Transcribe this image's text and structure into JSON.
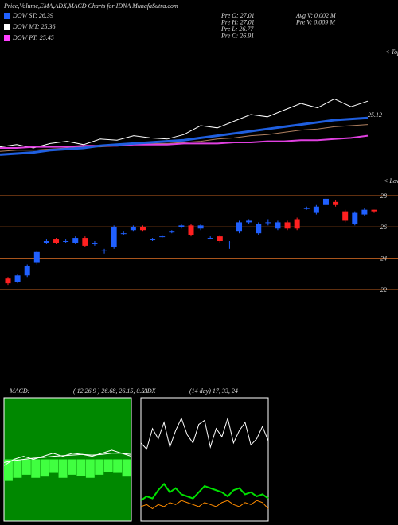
{
  "header": {
    "title": "Price,Volume,EMA,ADX,MACD Charts for IDNA MunafaSutra.com",
    "legend": [
      {
        "label": "DOW ST: 26.39",
        "color": "#2060ff"
      },
      {
        "label": "DOW MT: 25.36",
        "color": "#ffffff"
      },
      {
        "label": "DOW PT: 25.45",
        "color": "#ff40ff"
      }
    ],
    "stats": [
      "Pre  O: 27.01",
      "Pre  H: 27.01",
      "Pre  L: 26.77",
      "Pre  C: 26.91",
      "Avg V: 0.002  M",
      "Pre  V: 0.009 M"
    ],
    "tops": "< Tops",
    "lows": "< Lows",
    "macd_label": "MACD:",
    "macd_values": "( 12,26,9 ) 26.68, 26.15, 0.53",
    "adx_label": "ADX",
    "adx_values": "(14  day) 17, 33, 24"
  },
  "chart_data": [
    {
      "type": "line",
      "ylim": [
        21.2,
        31.2
      ],
      "yticks": [
        {
          "value": 25.12,
          "label": "25.12"
        }
      ],
      "series": [
        {
          "color": "#ffffff",
          "width": 1,
          "values": [
            22.3,
            22.5,
            22.2,
            22.6,
            22.8,
            22.5,
            23.0,
            22.9,
            23.3,
            23.1,
            23.0,
            23.4,
            24.2,
            24.0,
            24.6,
            25.2,
            25.0,
            25.6,
            26.2,
            25.8,
            26.6,
            25.9,
            26.4
          ]
        },
        {
          "color": "#b08060",
          "width": 1,
          "values": [
            21.9,
            22.0,
            22.0,
            22.1,
            22.2,
            22.3,
            22.3,
            22.4,
            22.5,
            22.6,
            22.6,
            22.7,
            22.8,
            23.0,
            23.1,
            23.3,
            23.4,
            23.6,
            23.8,
            23.9,
            24.1,
            24.2,
            24.3
          ]
        },
        {
          "color": "#e040e0",
          "width": 2,
          "values": [
            22.2,
            22.2,
            22.3,
            22.3,
            22.3,
            22.4,
            22.4,
            22.4,
            22.5,
            22.5,
            22.5,
            22.6,
            22.6,
            22.6,
            22.7,
            22.7,
            22.8,
            22.8,
            22.9,
            22.9,
            23.0,
            23.1,
            23.3
          ]
        },
        {
          "color": "#1f5fe0",
          "width": 3,
          "values": [
            21.6,
            21.7,
            21.8,
            22.0,
            22.1,
            22.2,
            22.4,
            22.5,
            22.6,
            22.7,
            22.8,
            22.9,
            23.1,
            23.3,
            23.5,
            23.7,
            23.9,
            24.1,
            24.3,
            24.5,
            24.7,
            24.8,
            24.9
          ]
        }
      ]
    },
    {
      "type": "candlestick",
      "ylim": [
        16,
        29
      ],
      "yticks": [
        28,
        26,
        24,
        22
      ],
      "up_color": "#2060ff",
      "down_color": "#ff2020",
      "grid_color": "#c06020",
      "open": [
        22.7,
        22.5,
        22.9,
        23.7,
        25.0,
        25.2,
        25.1,
        25.0,
        25.3,
        24.9,
        24.5,
        24.7,
        25.6,
        25.8,
        26.0,
        25.2,
        25.4,
        25.7,
        26.0,
        26.1,
        25.9,
        25.3,
        25.4,
        25.0,
        25.7,
        26.3,
        25.6,
        26.3,
        25.9,
        26.3,
        26.5,
        27.2,
        26.9,
        27.4,
        27.6,
        27.0,
        26.2,
        26.8,
        27.1
      ],
      "high": [
        22.8,
        23.0,
        23.6,
        24.5,
        25.2,
        25.3,
        25.2,
        25.4,
        25.4,
        25.1,
        24.6,
        26.1,
        25.7,
        26.1,
        26.1,
        25.3,
        25.5,
        25.8,
        26.2,
        26.2,
        26.2,
        25.4,
        25.5,
        25.1,
        26.4,
        26.5,
        26.3,
        26.5,
        26.4,
        26.4,
        26.6,
        27.3,
        27.4,
        27.9,
        27.7,
        27.1,
        27.0,
        27.2,
        27.1
      ],
      "low": [
        22.3,
        22.4,
        22.8,
        23.6,
        24.9,
        24.9,
        25.0,
        24.9,
        24.7,
        24.8,
        24.3,
        24.6,
        25.5,
        25.7,
        25.7,
        25.1,
        25.3,
        25.6,
        25.9,
        25.4,
        25.8,
        25.2,
        25.0,
        24.6,
        25.6,
        26.2,
        25.5,
        26.1,
        25.8,
        25.8,
        25.8,
        27.1,
        26.8,
        27.3,
        27.3,
        26.3,
        26.1,
        26.7,
        26.9
      ],
      "close": [
        22.4,
        22.9,
        23.5,
        24.4,
        25.1,
        25.0,
        25.1,
        25.3,
        24.8,
        25.0,
        24.5,
        26.0,
        25.6,
        26.0,
        25.8,
        25.2,
        25.4,
        25.7,
        26.1,
        25.5,
        26.1,
        25.3,
        25.1,
        25.0,
        26.3,
        26.4,
        26.2,
        26.3,
        26.3,
        25.9,
        25.9,
        27.2,
        27.3,
        27.8,
        27.4,
        26.4,
        26.9,
        27.1,
        27.0
      ]
    },
    {
      "type": "macd",
      "ylim": [
        -1,
        1
      ],
      "bar_color": "#40ff40",
      "series": [
        {
          "color": "#ffffff",
          "values": [
            -0.1,
            0.0,
            0.05,
            0.0,
            0.05,
            0.1,
            0.05,
            0.1,
            0.08,
            0.05,
            0.1,
            0.15,
            0.1,
            0.05
          ]
        },
        {
          "color": "#ffffff",
          "values": [
            -0.05,
            -0.02,
            0.0,
            0.02,
            0.03,
            0.05,
            0.06,
            0.07,
            0.08,
            0.07,
            0.08,
            0.1,
            0.1,
            0.08
          ]
        }
      ],
      "histogram": [
        -0.35,
        -0.3,
        -0.25,
        -0.3,
        -0.28,
        -0.22,
        -0.3,
        -0.25,
        -0.27,
        -0.3,
        -0.25,
        -0.2,
        -0.22,
        -0.28
      ]
    },
    {
      "type": "line",
      "ylim": [
        0,
        60
      ],
      "series": [
        {
          "color": "#ffffff",
          "width": 1,
          "values": [
            38,
            35,
            45,
            40,
            48,
            36,
            44,
            50,
            42,
            38,
            47,
            49,
            36,
            45,
            41,
            50,
            38,
            44,
            48,
            37,
            40,
            46,
            39
          ]
        },
        {
          "color": "#00e000",
          "width": 2,
          "values": [
            10,
            12,
            11,
            15,
            18,
            14,
            16,
            13,
            12,
            11,
            14,
            17,
            16,
            15,
            14,
            12,
            15,
            16,
            13,
            14,
            12,
            13,
            11
          ]
        },
        {
          "color": "#ff8c00",
          "width": 1,
          "values": [
            7,
            8,
            6,
            8,
            7,
            9,
            8,
            10,
            9,
            8,
            7,
            9,
            8,
            7,
            9,
            10,
            8,
            7,
            9,
            8,
            10,
            9,
            6
          ]
        }
      ]
    }
  ]
}
